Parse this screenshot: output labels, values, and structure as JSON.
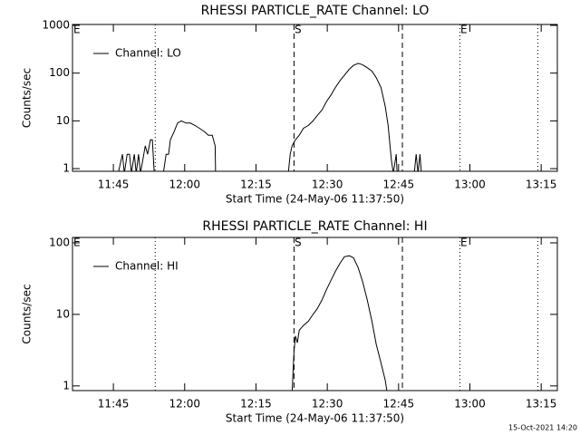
{
  "chart_data": [
    {
      "type": "line",
      "title": "RHESSI PARTICLE_RATE Channel: LO",
      "xlabel": "Start Time (24-May-06 11:37:50)",
      "ylabel": "Counts/sec",
      "log_scale": true,
      "legend": "upper left",
      "xlim": [
        696.4,
        798.4
      ],
      "ylim": [
        0.88,
        1044
      ],
      "xticks": [
        {
          "value": 705,
          "label": "11:45"
        },
        {
          "value": 720,
          "label": "12:00"
        },
        {
          "value": 735,
          "label": "12:15"
        },
        {
          "value": 750,
          "label": "12:30"
        },
        {
          "value": 765,
          "label": "12:45"
        },
        {
          "value": 780,
          "label": "13:00"
        },
        {
          "value": 795,
          "label": "13:15"
        }
      ],
      "yticks": [
        1,
        10,
        100,
        1000
      ],
      "vlines": [
        {
          "x": 713.8,
          "style": "dotted"
        },
        {
          "x": 743.0,
          "style": "dashed"
        },
        {
          "x": 765.8,
          "style": "dashed"
        },
        {
          "x": 777.9,
          "style": "dotted"
        },
        {
          "x": 794.3,
          "style": "dotted"
        }
      ],
      "markers": [
        {
          "x": 696.6,
          "label": "E"
        },
        {
          "x": 743.1,
          "label": "S"
        },
        {
          "x": 778.0,
          "label": "E"
        }
      ],
      "x": [
        706.0,
        706.9,
        707.3,
        707.9,
        708.4,
        708.8,
        709.4,
        709.8,
        710.3,
        710.7,
        711.7,
        712.2,
        712.8,
        713.2,
        713.6,
        715.5,
        716.1,
        716.6,
        717.0,
        717.8,
        718.5,
        719.3,
        720.3,
        721.2,
        722.2,
        723.1,
        724.1,
        725.0,
        725.8,
        726.4,
        726.5,
        741.8,
        742.2,
        742.6,
        743.3,
        744.1,
        745.0,
        746.0,
        747.0,
        747.9,
        748.9,
        749.8,
        750.8,
        751.7,
        752.7,
        753.6,
        754.6,
        755.5,
        756.5,
        757.4,
        758.4,
        759.4,
        760.3,
        761.3,
        762.2,
        762.8,
        763.2,
        763.5,
        763.9,
        764.5,
        764.7,
        768.3,
        768.7,
        769.1,
        769.5,
        769.8
      ],
      "series": [
        {
          "name": "Channel: LO",
          "color": "#000000",
          "values": [
            0.8,
            2,
            0.8,
            2,
            2,
            0.8,
            2,
            0.8,
            2,
            0.8,
            3,
            2,
            4,
            4,
            0.8,
            0.8,
            2,
            2,
            4,
            6,
            9,
            10,
            9,
            9,
            8,
            7,
            6,
            5,
            5,
            3,
            0.8,
            0.8,
            2,
            3,
            4,
            5,
            7,
            8,
            10,
            13,
            17,
            25,
            35,
            50,
            70,
            90,
            120,
            145,
            160,
            150,
            130,
            110,
            80,
            50,
            20,
            8,
            3,
            1.5,
            0.8,
            2,
            0.8,
            0.8,
            2,
            0.8,
            2,
            0.8
          ]
        }
      ]
    },
    {
      "type": "line",
      "title": "RHESSI PARTICLE_RATE Channel: HI",
      "xlabel": "Start Time (24-May-06 11:37:50)",
      "ylabel": "Counts/sec",
      "log_scale": true,
      "legend": "upper left",
      "xlim": [
        696.4,
        798.4
      ],
      "ylim": [
        0.86,
        119
      ],
      "xticks": [
        {
          "value": 705,
          "label": "11:45"
        },
        {
          "value": 720,
          "label": "12:00"
        },
        {
          "value": 735,
          "label": "12:15"
        },
        {
          "value": 750,
          "label": "12:30"
        },
        {
          "value": 765,
          "label": "12:45"
        },
        {
          "value": 780,
          "label": "13:00"
        },
        {
          "value": 795,
          "label": "13:15"
        }
      ],
      "yticks": [
        1,
        10,
        100
      ],
      "vlines": [
        {
          "x": 713.8,
          "style": "dotted"
        },
        {
          "x": 743.0,
          "style": "dashed"
        },
        {
          "x": 765.8,
          "style": "dashed"
        },
        {
          "x": 777.9,
          "style": "dotted"
        },
        {
          "x": 794.3,
          "style": "dotted"
        }
      ],
      "markers": [
        {
          "x": 696.6,
          "label": "E"
        },
        {
          "x": 743.1,
          "label": "S"
        },
        {
          "x": 778.0,
          "label": "E"
        }
      ],
      "x": [
        742.6,
        743.0,
        743.3,
        743.7,
        744.1,
        745.0,
        746.0,
        747.0,
        747.9,
        748.9,
        749.8,
        750.8,
        751.7,
        752.7,
        753.6,
        754.6,
        755.5,
        756.5,
        757.4,
        758.4,
        759.4,
        760.3,
        761.3,
        762.2,
        762.6
      ],
      "series": [
        {
          "name": "Channel: HI",
          "color": "#000000",
          "values": [
            0.8,
            3,
            5,
            4,
            6,
            7,
            8,
            10,
            12,
            16,
            22,
            30,
            40,
            52,
            64,
            66,
            62,
            45,
            29,
            16,
            8,
            3.8,
            2.1,
            1.2,
            0.8
          ]
        }
      ]
    }
  ],
  "footer": "15-Oct-2021 14:20"
}
